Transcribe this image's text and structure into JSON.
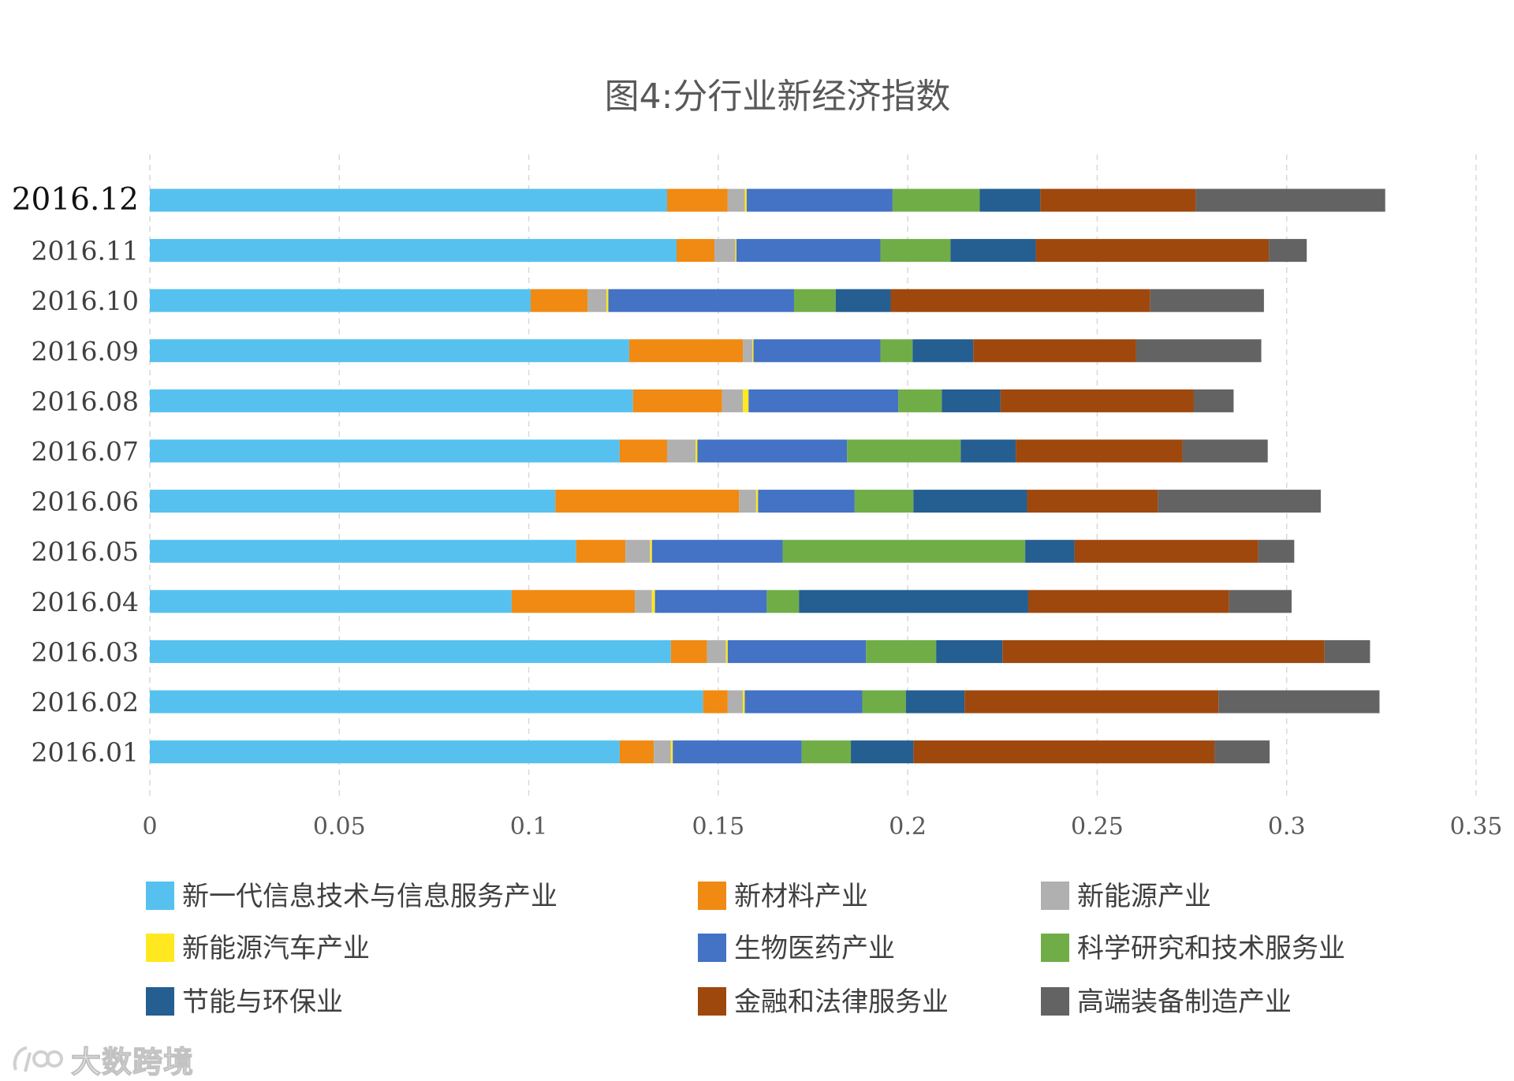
{
  "chart_data": {
    "type": "bar",
    "orientation": "horizontal",
    "stacked": true,
    "title": "图4:分行业新经济指数",
    "categories": [
      "2016.12",
      "2016.11",
      "2016.10",
      "2016.09",
      "2016.08",
      "2016.07",
      "2016.06",
      "2016.05",
      "2016.04",
      "2016.03",
      "2016.02",
      "2016.01"
    ],
    "xlim": [
      0,
      0.35
    ],
    "x_ticks": [
      0,
      0.05,
      0.1,
      0.15,
      0.2,
      0.25,
      0.3,
      0.35
    ],
    "x_tick_labels": [
      "0",
      "0.05",
      "0.1",
      "0.15",
      "0.2",
      "0.25",
      "0.3",
      "0.35"
    ],
    "grid": "vertical-dashed",
    "legend_position": "bottom",
    "series": [
      {
        "name": "新一代信息技术与信息服务产业",
        "color": "#56C1EF",
        "values": [
          0.1365,
          0.139,
          0.1005,
          0.1265,
          0.1275,
          0.124,
          0.107,
          0.1125,
          0.0955,
          0.1375,
          0.146,
          0.124
        ]
      },
      {
        "name": "新材料产业",
        "color": "#F08A12",
        "values": [
          0.016,
          0.01,
          0.015,
          0.03,
          0.0235,
          0.0125,
          0.0485,
          0.013,
          0.0325,
          0.0095,
          0.0065,
          0.009
        ]
      },
      {
        "name": "新能源产业",
        "color": "#B0B0B0",
        "values": [
          0.0045,
          0.0055,
          0.005,
          0.0025,
          0.0055,
          0.0075,
          0.0045,
          0.0065,
          0.0045,
          0.005,
          0.004,
          0.0045
        ]
      },
      {
        "name": "新能源汽车产业",
        "color": "#FFE81F",
        "values": [
          0.0005,
          0.0003,
          0.0005,
          0.0003,
          0.0015,
          0.0005,
          0.0005,
          0.0005,
          0.0008,
          0.0005,
          0.0005,
          0.0005
        ]
      },
      {
        "name": "生物医药产业",
        "color": "#4472C4",
        "values": [
          0.0385,
          0.038,
          0.049,
          0.0335,
          0.0395,
          0.0395,
          0.0255,
          0.0345,
          0.0295,
          0.0365,
          0.031,
          0.034
        ]
      },
      {
        "name": "科学研究和技术服务业",
        "color": "#70AD47",
        "values": [
          0.023,
          0.0185,
          0.011,
          0.0085,
          0.0115,
          0.03,
          0.0155,
          0.064,
          0.0085,
          0.0185,
          0.0115,
          0.013
        ]
      },
      {
        "name": "节能与环保业",
        "color": "#255E91",
        "values": [
          0.016,
          0.0225,
          0.0145,
          0.016,
          0.0155,
          0.0145,
          0.03,
          0.013,
          0.0605,
          0.0175,
          0.0155,
          0.0165
        ]
      },
      {
        "name": "金融和法律服务业",
        "color": "#9E480E",
        "values": [
          0.041,
          0.0615,
          0.0685,
          0.043,
          0.051,
          0.044,
          0.0345,
          0.0485,
          0.053,
          0.085,
          0.067,
          0.0795
        ]
      },
      {
        "name": "高端装备制造产业",
        "color": "#636363",
        "values": [
          0.05,
          0.01,
          0.03,
          0.033,
          0.0105,
          0.0225,
          0.043,
          0.0095,
          0.0165,
          0.012,
          0.0425,
          0.0145
        ]
      }
    ]
  },
  "watermark": {
    "text": "大数跨境"
  }
}
